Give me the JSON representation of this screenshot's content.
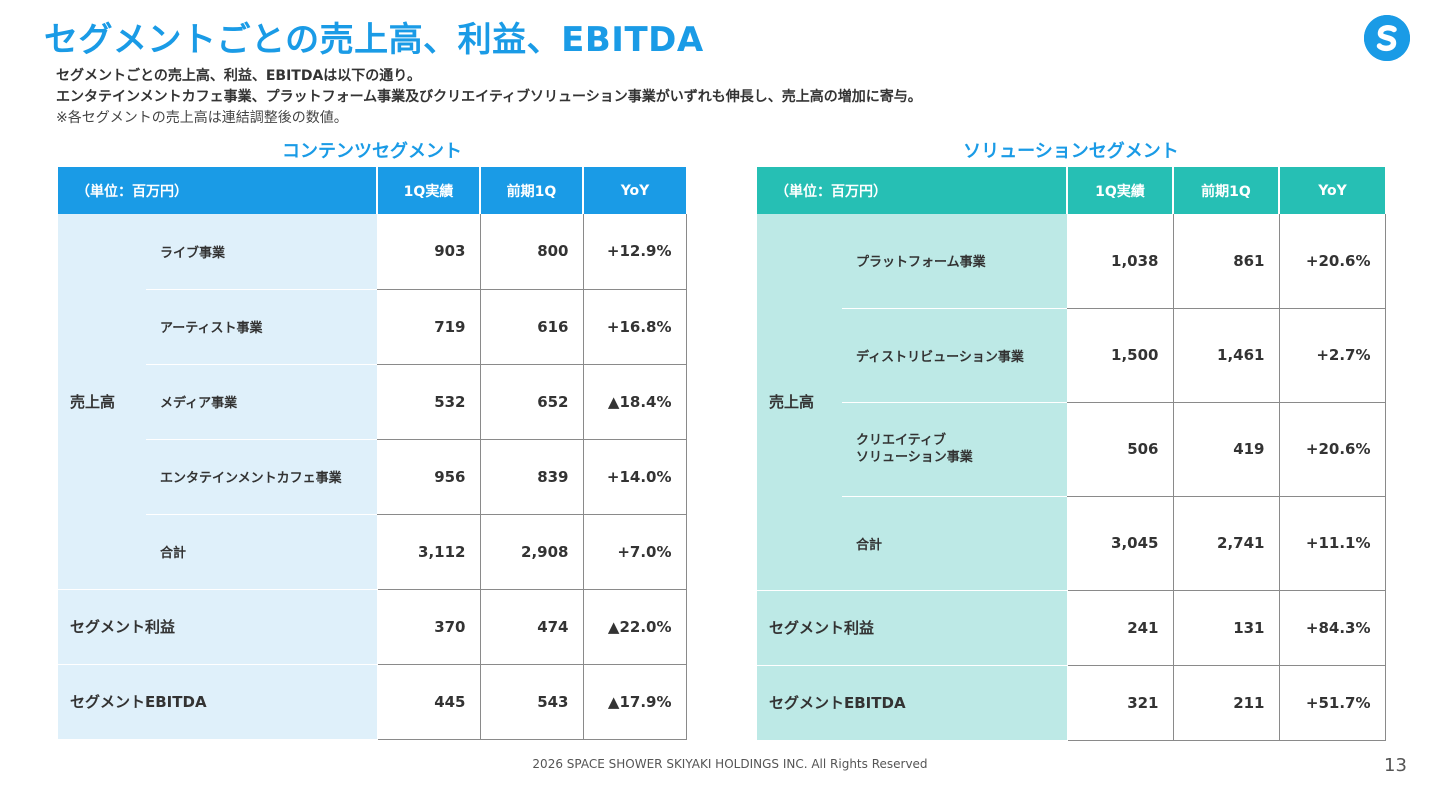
{
  "title": "セグメントごとの売上高、利益、EBITDA",
  "logo_letter": "S",
  "intro": {
    "line1": "セグメントごとの売上高、利益、EBITDAは以下の通り。",
    "line2": "エンタテインメントカフェ事業、プラットフォーム事業及びクリエイティブソリューション事業がいずれも伸長し、売上高の増加に寄与。",
    "note": "※各セグメントの売上高は連結調整後の数値。"
  },
  "contents": {
    "title": "コンテンツセグメント",
    "headers": {
      "unit": "（単位：百万円）",
      "q1": "1Q実績",
      "prev": "前期1Q",
      "yoy": "YoY"
    },
    "revenue_label": "売上高",
    "rows": [
      {
        "name": "ライブ事業",
        "q1": "903",
        "prev": "800",
        "yoy": "+12.9%"
      },
      {
        "name": "アーティスト事業",
        "q1": "719",
        "prev": "616",
        "yoy": "+16.8%"
      },
      {
        "name": "メディア事業",
        "q1": "532",
        "prev": "652",
        "yoy": "▲18.4%"
      },
      {
        "name": "エンタテインメントカフェ事業",
        "q1": "956",
        "prev": "839",
        "yoy": "+14.0%"
      },
      {
        "name": "合計",
        "q1": "3,112",
        "prev": "2,908",
        "yoy": "+7.0%"
      }
    ],
    "profit": {
      "name": "セグメント利益",
      "q1": "370",
      "prev": "474",
      "yoy": "▲22.0%"
    },
    "ebitda": {
      "name": "セグメントEBITDA",
      "q1": "445",
      "prev": "543",
      "yoy": "▲17.9%"
    }
  },
  "solution": {
    "title": "ソリューションセグメント",
    "headers": {
      "unit": "（単位：百万円）",
      "q1": "1Q実績",
      "prev": "前期1Q",
      "yoy": "YoY"
    },
    "revenue_label": "売上高",
    "rows": [
      {
        "name": "プラットフォーム事業",
        "q1": "1,038",
        "prev": "861",
        "yoy": "+20.6%"
      },
      {
        "name": "ディストリビューション事業",
        "q1": "1,500",
        "prev": "1,461",
        "yoy": "+2.7%"
      },
      {
        "name_line1": "クリエイティブ",
        "name_line2": "ソリューション事業",
        "q1": "506",
        "prev": "419",
        "yoy": "+20.6%"
      },
      {
        "name": "合計",
        "q1": "3,045",
        "prev": "2,741",
        "yoy": "+11.1%"
      }
    ],
    "profit": {
      "name": "セグメント利益",
      "q1": "241",
      "prev": "131",
      "yoy": "+84.3%"
    },
    "ebitda": {
      "name": "セグメントEBITDA",
      "q1": "321",
      "prev": "211",
      "yoy": "+51.7%"
    }
  },
  "footer": "2026 SPACE SHOWER SKIYAKI HOLDINGS INC. All Rights Reserved",
  "page_number": "13",
  "colors": {
    "accent_blue": "#1a9be6",
    "accent_teal": "#26bfb4",
    "light_blue": "#dff0fa",
    "light_teal": "#bde9e6"
  }
}
